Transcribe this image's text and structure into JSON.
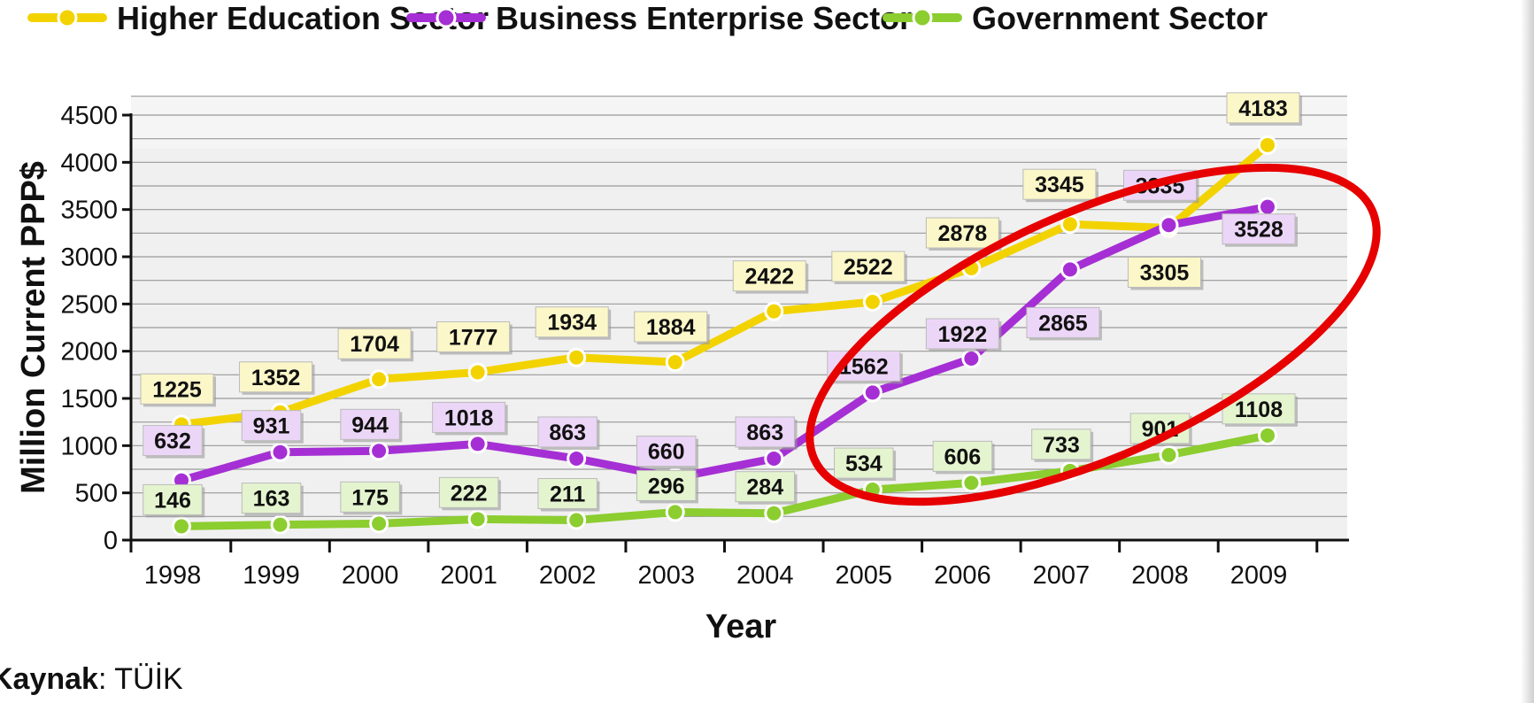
{
  "chart_data": {
    "type": "line",
    "xlabel": "Year",
    "ylabel": "Million Current PPP$",
    "ylim": [
      0,
      4500
    ],
    "y_ticks": [
      0,
      500,
      1000,
      1500,
      2000,
      2500,
      3000,
      3500,
      4000,
      4500
    ],
    "categories": [
      "1998",
      "1999",
      "2000",
      "2001",
      "2002",
      "2003",
      "2004",
      "2005",
      "2006",
      "2007",
      "2008",
      "2009"
    ],
    "grid": true,
    "legend_position": "top",
    "series": [
      {
        "name": "Higher Education Sector",
        "color": "#f2d300",
        "label_bg": "#fbf7c8",
        "values": [
          1225,
          1352,
          1704,
          1777,
          1934,
          1884,
          2422,
          2522,
          2878,
          3345,
          3305,
          4183
        ],
        "labels": [
          "1225",
          "1352",
          "1704",
          "1777",
          "1934",
          "1884",
          "2422",
          "2522",
          "2878",
          "3345",
          "3305",
          "4183"
        ]
      },
      {
        "name": "Business Enterprise Sector",
        "color": "#a52fd4",
        "label_bg": "#ecd6f7",
        "values": [
          632,
          931,
          944,
          1018,
          863,
          660,
          863,
          1562,
          1922,
          2865,
          3335,
          3528
        ],
        "labels": [
          "632",
          "931",
          "944",
          "1018",
          "863",
          "660",
          "863",
          "1562",
          "1922",
          "2865",
          "3335",
          "3528"
        ]
      },
      {
        "name": "Government Sector",
        "color": "#8ccd30",
        "label_bg": "#e4f4cf",
        "values": [
          146,
          163,
          175,
          222,
          211,
          296,
          284,
          534,
          606,
          733,
          901,
          1108
        ],
        "labels": [
          "146",
          "163",
          "175",
          "222",
          "211",
          "296",
          "284",
          "534",
          "606",
          "733",
          "901",
          "1108"
        ]
      }
    ],
    "annotations": [
      {
        "type": "ellipse",
        "color": "#e60000",
        "description": "highlights 2005-2009 growth of Business Enterprise Sector"
      }
    ]
  },
  "source": {
    "prefix": "Kaynak",
    "text": ": TÜİK"
  }
}
